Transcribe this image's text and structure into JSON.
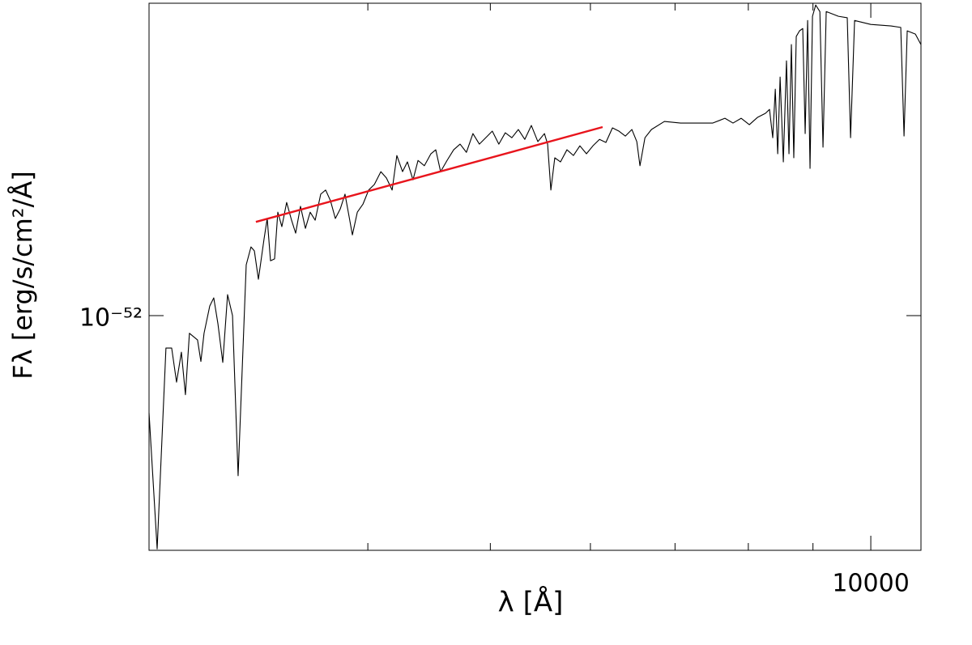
{
  "chart_data": {
    "type": "line",
    "x_label": "λ [Å]",
    "y_label": "Fλ [erg/s/cm²/Å]",
    "x_log": true,
    "y_log": true,
    "xlim": [
      2685,
      10957
    ],
    "ylim": [
      5.731e-53,
      2.098e-52
    ],
    "xticks": [
      10000
    ],
    "x_minor_ticks": [
      4000,
      5000,
      6000,
      7000,
      8000,
      9000
    ],
    "yticks": [
      {
        "value": 1e-52,
        "label": "10⁻⁵²"
      }
    ],
    "series": [
      {
        "color": "#000000",
        "x": [
          2685,
          2725,
          2769,
          2798,
          2823,
          2848,
          2869,
          2890,
          2933,
          2951,
          2968,
          2999,
          3021,
          3044,
          3071,
          3098,
          3126,
          3158,
          3205,
          3233,
          3253,
          3277,
          3311,
          3330,
          3350,
          3375,
          3395,
          3420,
          3450,
          3481,
          3507,
          3538,
          3570,
          3601,
          3634,
          3671,
          3704,
          3737,
          3770,
          3804,
          3837,
          3866,
          3889,
          3924,
          3965,
          4006,
          4048,
          4096,
          4138,
          4181,
          4217,
          4261,
          4299,
          4343,
          4383,
          4434,
          4487,
          4527,
          4567,
          4621,
          4677,
          4732,
          4787,
          4844,
          4901,
          4959,
          5018,
          5078,
          5138,
          5200,
          5262,
          5324,
          5388,
          5452,
          5518,
          5550,
          5583,
          5623,
          5682,
          5749,
          5817,
          5886,
          5957,
          6028,
          6100,
          6172,
          6246,
          6320,
          6395,
          6471,
          6529,
          6567,
          6627,
          6706,
          6866,
          7071,
          7281,
          7499,
          7666,
          7780,
          7897,
          8015,
          8133,
          8254,
          8315,
          8364,
          8403,
          8440,
          8477,
          8527,
          8576,
          8615,
          8653,
          8691,
          8730,
          8782,
          8834,
          8873,
          8913,
          8952,
          8992,
          9045,
          9114,
          9166,
          9220,
          9427,
          9580,
          9638,
          9709,
          10000,
          10375,
          10561,
          10624,
          10686,
          10846,
          10957
        ],
        "values": [
          7.94e-53,
          5.75e-53,
          9.26e-53,
          9.26e-53,
          8.54e-53,
          9.17e-53,
          8.29e-53,
          9.59e-53,
          9.44e-53,
          8.97e-53,
          9.59e-53,
          1.023e-52,
          1.043e-52,
          9.81e-53,
          8.95e-53,
          1.051e-52,
          1e-52,
          6.84e-53,
          1.128e-52,
          1.177e-52,
          1.166e-52,
          1.09e-52,
          1.2e-52,
          1.259e-52,
          1.139e-52,
          1.144e-52,
          1.278e-52,
          1.235e-52,
          1.308e-52,
          1.254e-52,
          1.216e-52,
          1.296e-52,
          1.23e-52,
          1.278e-52,
          1.254e-52,
          1.334e-52,
          1.347e-52,
          1.313e-52,
          1.259e-52,
          1.288e-52,
          1.334e-52,
          1.264e-52,
          1.211e-52,
          1.278e-52,
          1.303e-52,
          1.347e-52,
          1.365e-52,
          1.407e-52,
          1.386e-52,
          1.347e-52,
          1.462e-52,
          1.407e-52,
          1.44e-52,
          1.38e-52,
          1.445e-52,
          1.427e-52,
          1.468e-52,
          1.482e-52,
          1.407e-52,
          1.445e-52,
          1.482e-52,
          1.502e-52,
          1.473e-52,
          1.54e-52,
          1.502e-52,
          1.525e-52,
          1.549e-52,
          1.502e-52,
          1.543e-52,
          1.525e-52,
          1.555e-52,
          1.519e-52,
          1.57e-52,
          1.511e-52,
          1.54e-52,
          1.502e-52,
          1.347e-52,
          1.454e-52,
          1.44e-52,
          1.482e-52,
          1.462e-52,
          1.496e-52,
          1.468e-52,
          1.496e-52,
          1.519e-52,
          1.508e-52,
          1.561e-52,
          1.549e-52,
          1.531e-52,
          1.555e-52,
          1.511e-52,
          1.427e-52,
          1.525e-52,
          1.555e-52,
          1.585e-52,
          1.579e-52,
          1.579e-52,
          1.579e-52,
          1.597e-52,
          1.579e-52,
          1.597e-52,
          1.573e-52,
          1.6e-52,
          1.616e-52,
          1.631e-52,
          1.525e-52,
          1.711e-52,
          1.468e-52,
          1.761e-52,
          1.44e-52,
          1.83e-52,
          1.468e-52,
          1.902e-52,
          1.454e-52,
          1.939e-52,
          1.965e-52,
          1.976e-52,
          1.54e-52,
          2.014e-52,
          1.418e-52,
          2.034e-52,
          2.089e-52,
          2.057e-52,
          1.491e-52,
          2.057e-52,
          2.034e-52,
          2.027e-52,
          1.525e-52,
          2.014e-52,
          1.995e-52,
          1.988e-52,
          1.981e-52,
          1.531e-52,
          1.965e-52,
          1.95e-52,
          1.902e-52
        ]
      },
      {
        "color": "#e8141c",
        "x": [
          3262,
          6135
        ],
        "values": [
          1.249e-52,
          1.564e-52
        ]
      }
    ]
  }
}
